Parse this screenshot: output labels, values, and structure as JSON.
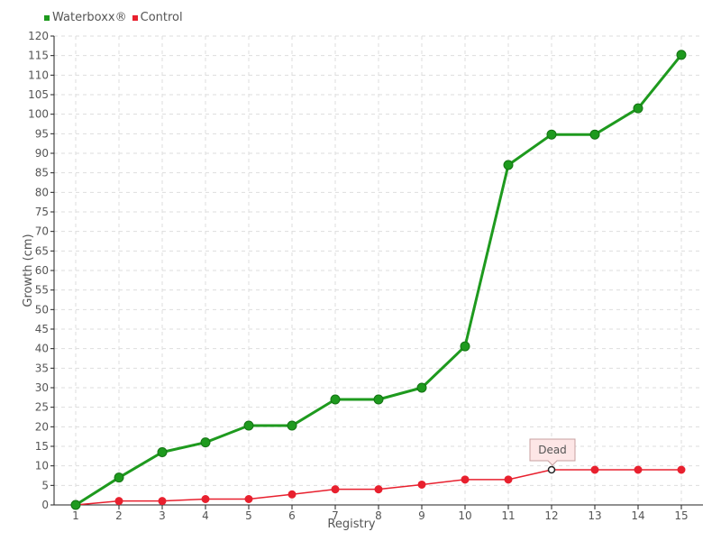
{
  "colors": {
    "waterboxx": "#1e9a1e",
    "control": "#e8202e",
    "grid": "#dddddd",
    "axis": "#222222"
  },
  "chart_data": {
    "type": "line",
    "xlabel": "Registry",
    "ylabel": "Growth (cm)",
    "categories": [
      "1",
      "2",
      "3",
      "4",
      "5",
      "6",
      "7",
      "8",
      "9",
      "10",
      "11",
      "12",
      "13",
      "14",
      "15"
    ],
    "ylim": [
      0,
      120
    ],
    "ytick_step": 5,
    "grid": true,
    "legend_position": "top-left",
    "series": [
      {
        "name": "Waterboxx®",
        "values": [
          0,
          7,
          13.5,
          16,
          20.3,
          20.3,
          27,
          27,
          30,
          40.6,
          87,
          94.8,
          94.8,
          101.5,
          115.2
        ]
      },
      {
        "name": "Control",
        "values": [
          0,
          1,
          1,
          1.5,
          1.5,
          2.7,
          4,
          4,
          5.2,
          6.5,
          6.5,
          9,
          9,
          9,
          9
        ]
      }
    ],
    "annotations": [
      {
        "series": "Control",
        "category": "12",
        "text": "Dead"
      }
    ]
  }
}
